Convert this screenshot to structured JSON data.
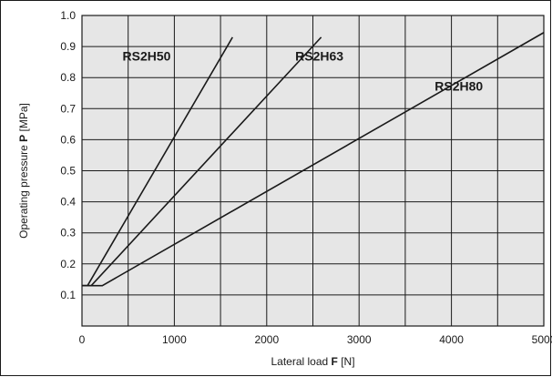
{
  "chart_data": {
    "type": "line",
    "xlabel": {
      "prefix": "Lateral load ",
      "symbol": "F",
      "unit": " [N]"
    },
    "ylabel": {
      "prefix": "Operating pressure ",
      "symbol": "P",
      "unit": " [MPa]"
    },
    "xlim": [
      0,
      5000
    ],
    "ylim": [
      0,
      1.0
    ],
    "x_ticks": [
      0,
      1000,
      2000,
      3000,
      4000,
      5000
    ],
    "y_ticks": [
      0.1,
      0.2,
      0.3,
      0.4,
      0.5,
      0.6,
      0.7,
      0.8,
      0.9,
      1.0
    ],
    "x_grid_step": 500,
    "y_grid_step": 0.1,
    "grid": true,
    "plot_background": "#e6e6e6",
    "line_color": "#1a1a1a",
    "series": [
      {
        "name": "RS2H50",
        "x": [
          0,
          60,
          1630
        ],
        "y": [
          0.13,
          0.13,
          0.93
        ]
      },
      {
        "name": "RS2H63",
        "x": [
          0,
          100,
          2590
        ],
        "y": [
          0.13,
          0.13,
          0.93
        ]
      },
      {
        "name": "RS2H80",
        "x": [
          0,
          220,
          5000
        ],
        "y": [
          0.13,
          0.13,
          0.945
        ]
      }
    ],
    "annotations": [
      {
        "text": "RS2H50",
        "x": 700,
        "y": 0.855
      },
      {
        "text": "RS2H63",
        "x": 2570,
        "y": 0.855
      },
      {
        "text": "RS2H80",
        "x": 4080,
        "y": 0.758
      }
    ]
  }
}
